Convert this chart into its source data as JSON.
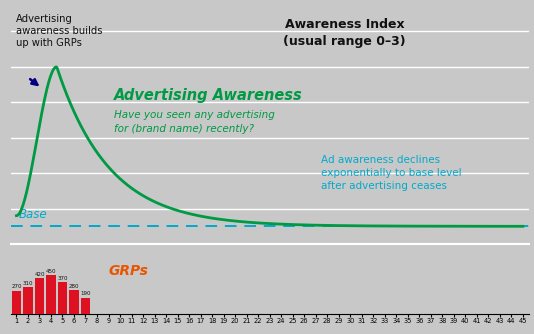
{
  "bg_color": "#c8c8c8",
  "base_level": 0.25,
  "peak_x": 4.5,
  "peak_y": 2.5,
  "x_max": 45,
  "decay_rate": 0.22,
  "start_y": 0.4,
  "grp_bars": {
    "weeks": [
      1,
      2,
      3,
      4,
      5,
      6,
      7
    ],
    "heights": [
      270,
      310,
      420,
      450,
      370,
      280,
      190
    ],
    "color": "#dd1122"
  },
  "curve_color": "#009944",
  "base_color": "#00aacc",
  "arrow_color": "#000080",
  "teal_color": "#00aacc",
  "green_color": "#009944",
  "orange_color": "#e85500",
  "black_color": "#111111",
  "grid_color": "#ffffff",
  "y_grid_vals": [
    0.5,
    1.0,
    1.5,
    2.0,
    2.5,
    3.0
  ],
  "ylim": [
    0,
    3.3
  ],
  "x_ticks": [
    1,
    2,
    3,
    4,
    5,
    6,
    7,
    8,
    9,
    10,
    11,
    12,
    13,
    14,
    15,
    16,
    17,
    18,
    19,
    20,
    21,
    22,
    23,
    24,
    25,
    26,
    27,
    28,
    29,
    30,
    31,
    32,
    33,
    34,
    35,
    36,
    37,
    38,
    39,
    40,
    41,
    42,
    43,
    44,
    45
  ],
  "awareness_ratio": 0.77,
  "grp_ratio": 0.23,
  "title_line1": "Awareness Index",
  "title_line2": "(usual range 0–3)",
  "annotation_build": "Advertising\nawareness builds\nup with GRPs",
  "annotation_adaware_bold": "Advertising Awareness",
  "annotation_adaware_sub": "Have you seen any advertising\nfor (brand name) recently?",
  "annotation_decline": "Ad awareness declines\nexponentially to base level\nafter advertising ceases",
  "annotation_base": "Base",
  "annotation_grps": "GRPs"
}
